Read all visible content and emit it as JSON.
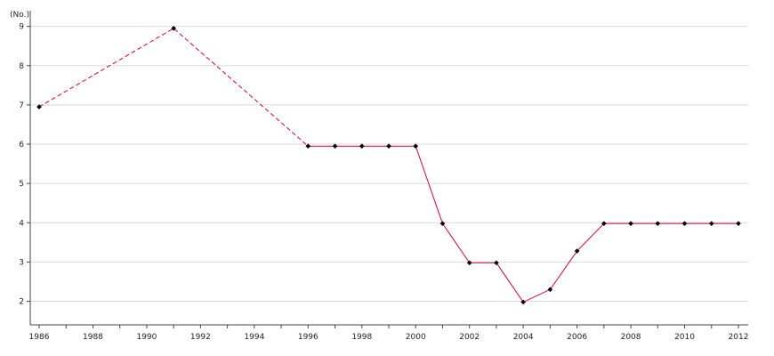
{
  "chart_data": {
    "type": "line",
    "title": "",
    "xlabel": "",
    "ylabel": "",
    "y_unit_label": "(No.)",
    "xlim": [
      1986,
      2012
    ],
    "ylim": [
      1.4,
      9.4
    ],
    "x_tick_labels": [
      "1986",
      "1988",
      "1990",
      "1992",
      "1994",
      "1996",
      "1998",
      "2000",
      "2002",
      "2004",
      "2006",
      "2008",
      "2010",
      "2012"
    ],
    "y_tick_labels": [
      "2",
      "3",
      "4",
      "5",
      "6",
      "7",
      "8",
      "9"
    ],
    "grid": "horizontal",
    "legend": "none",
    "series": [
      {
        "color": "#d2003c",
        "marker_color": "#000000",
        "solid_from_x": 1996,
        "dashed_before": true,
        "points": [
          {
            "x": 1986,
            "y": 6.95
          },
          {
            "x": 1991,
            "y": 8.95
          },
          {
            "x": 1996,
            "y": 5.95
          },
          {
            "x": 1997,
            "y": 5.95
          },
          {
            "x": 1998,
            "y": 5.95
          },
          {
            "x": 1999,
            "y": 5.95
          },
          {
            "x": 2000,
            "y": 5.95
          },
          {
            "x": 2001,
            "y": 3.98
          },
          {
            "x": 2002,
            "y": 2.98
          },
          {
            "x": 2003,
            "y": 2.98
          },
          {
            "x": 2004,
            "y": 1.98
          },
          {
            "x": 2005,
            "y": 2.3
          },
          {
            "x": 2006,
            "y": 3.28
          },
          {
            "x": 2007,
            "y": 3.98
          },
          {
            "x": 2008,
            "y": 3.98
          },
          {
            "x": 2009,
            "y": 3.98
          },
          {
            "x": 2010,
            "y": 3.98
          },
          {
            "x": 2011,
            "y": 3.98
          },
          {
            "x": 2012,
            "y": 3.98
          }
        ]
      }
    ]
  }
}
